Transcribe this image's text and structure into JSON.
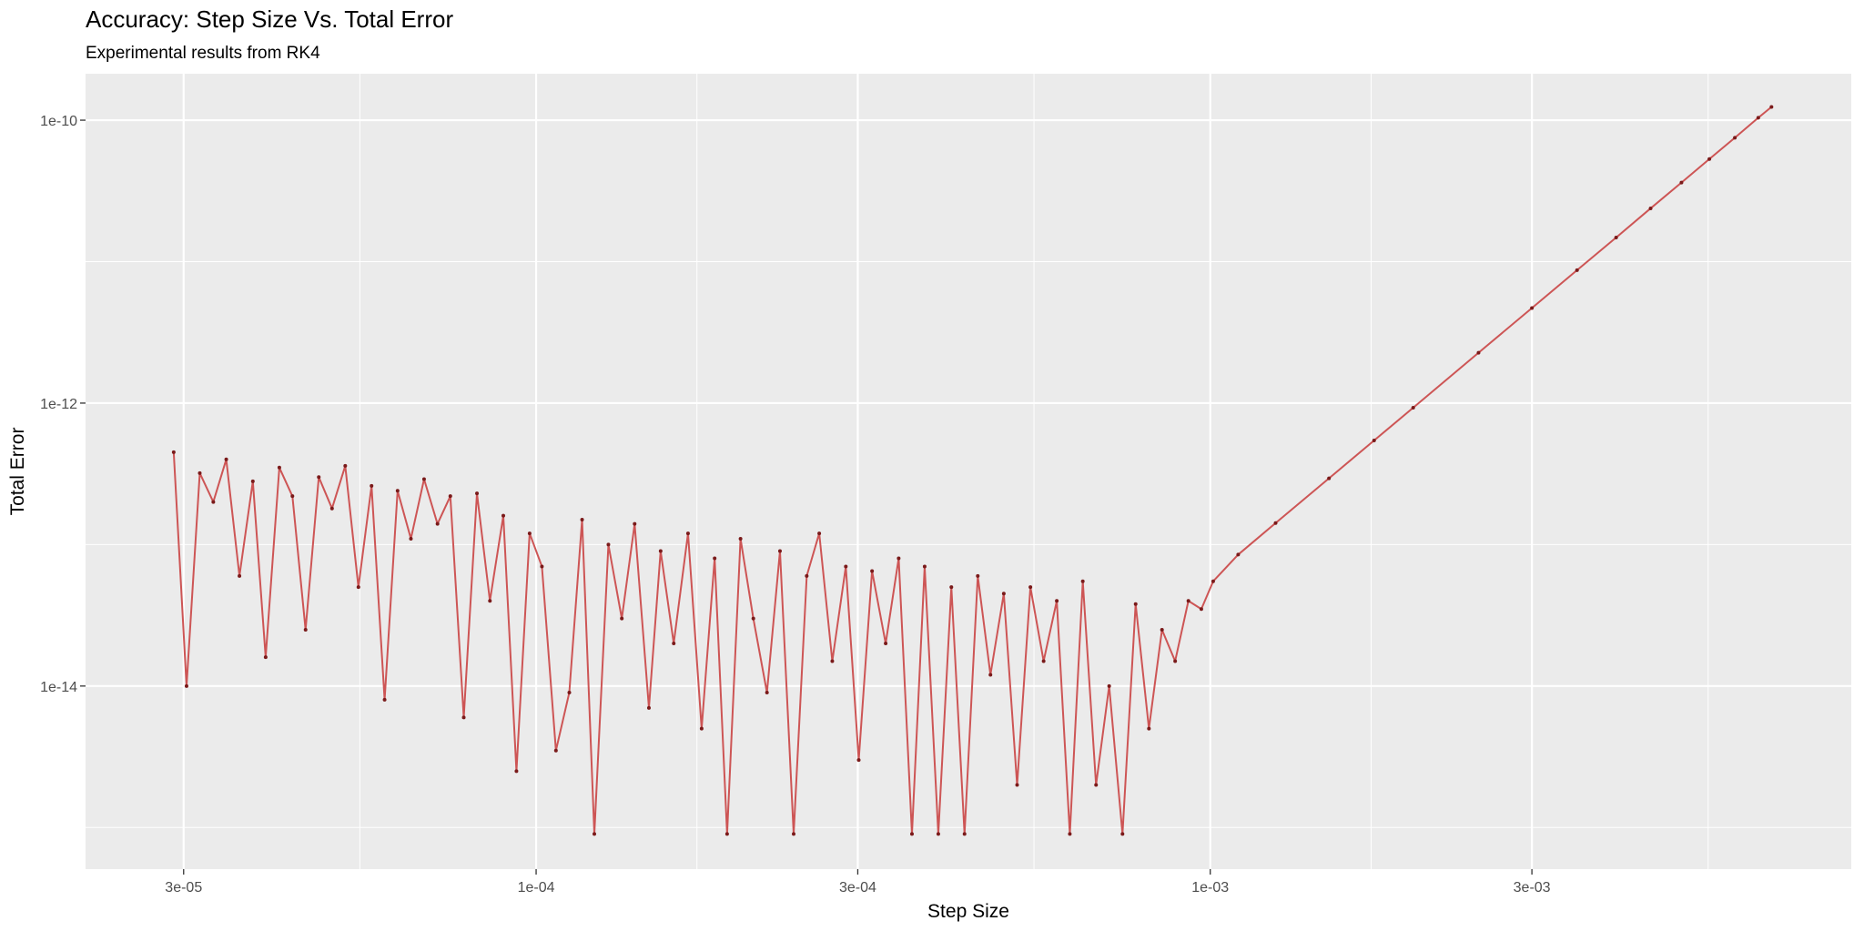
{
  "chart_data": {
    "type": "line",
    "title": "Accuracy: Step Size Vs. Total Error",
    "subtitle": "Experimental results from RK4",
    "x_label": "Step Size",
    "y_label": "Total Error",
    "x_log": true,
    "y_log": true,
    "grid": true,
    "xlim": [
      2.146e-05,
      0.00893
    ],
    "ylim": [
      5.08e-16,
      2.13e-10
    ],
    "xticks": [
      {
        "value": 3e-05,
        "label": "3e-05"
      },
      {
        "value": 0.0001,
        "label": "1e-04"
      },
      {
        "value": 0.0003,
        "label": "3e-04"
      },
      {
        "value": 0.001,
        "label": "1e-03"
      },
      {
        "value": 0.003,
        "label": "3e-03"
      }
    ],
    "x_minor_ticks": [
      5.477e-05,
      0.0001732,
      0.0005477,
      0.001732,
      0.005477
    ],
    "yticks": [
      {
        "value": 1e-14,
        "label": "1e-14"
      },
      {
        "value": 1e-12,
        "label": "1e-12"
      },
      {
        "value": 1e-10,
        "label": "1e-10"
      }
    ],
    "y_minor_ticks": [
      1e-15,
      1e-13,
      1e-11
    ],
    "series": [
      {
        "name": "Total Error",
        "color": "#cd5555",
        "point_color": "#7a1a1a",
        "x": [
          2.9e-05,
          3.03e-05,
          3.17e-05,
          3.32e-05,
          3.47e-05,
          3.63e-05,
          3.8e-05,
          3.97e-05,
          4.16e-05,
          4.35e-05,
          4.55e-05,
          4.76e-05,
          4.98e-05,
          5.21e-05,
          5.45e-05,
          5.7e-05,
          5.96e-05,
          6.23e-05,
          6.52e-05,
          6.82e-05,
          7.14e-05,
          7.46e-05,
          7.81e-05,
          8.17e-05,
          8.54e-05,
          8.94e-05,
          9.35e-05,
          9.78e-05,
          0.000102,
          0.000107,
          0.000112,
          0.000117,
          0.000122,
          0.000128,
          0.000134,
          0.00014,
          0.000147,
          0.000153,
          0.00016,
          0.000168,
          0.000176,
          0.000184,
          0.000192,
          0.000201,
          0.00021,
          0.00022,
          0.00023,
          0.000241,
          0.000252,
          0.000263,
          0.000275,
          0.000288,
          0.000301,
          0.000315,
          0.00033,
          0.000345,
          0.000361,
          0.000377,
          0.000395,
          0.000413,
          0.000432,
          0.000452,
          0.000472,
          0.000494,
          0.000517,
          0.000541,
          0.000566,
          0.000592,
          0.000619,
          0.000647,
          0.000677,
          0.000708,
          0.000741,
          0.000775,
          0.000811,
          0.000848,
          0.000887,
          0.000928,
          0.00097,
          0.00101,
          0.0011,
          0.00125,
          0.0015,
          0.00175,
          0.002,
          0.0025,
          0.003,
          0.0035,
          0.004,
          0.0045,
          0.005,
          0.0055,
          0.006,
          0.0065,
          0.0068
        ],
        "values": [
          4.5e-13,
          1e-14,
          3.2e-13,
          2e-13,
          4e-13,
          6e-14,
          2.8e-13,
          1.6e-14,
          3.5e-13,
          2.2e-13,
          2.5e-14,
          3e-13,
          1.8e-13,
          3.6e-13,
          5e-14,
          2.6e-13,
          8e-15,
          2.4e-13,
          1.1e-13,
          2.9e-13,
          1.4e-13,
          2.2e-13,
          6e-15,
          2.3e-13,
          4e-14,
          1.6e-13,
          2.5e-15,
          1.2e-13,
          7e-14,
          3.5e-15,
          9e-15,
          1.5e-13,
          9e-16,
          1e-13,
          3e-14,
          1.4e-13,
          7e-15,
          9e-14,
          2e-14,
          1.2e-13,
          5e-15,
          8e-14,
          9e-16,
          1.1e-13,
          3e-14,
          9e-15,
          9e-14,
          9e-16,
          6e-14,
          1.2e-13,
          1.5e-14,
          7e-14,
          3e-15,
          6.5e-14,
          2e-14,
          8e-14,
          9e-16,
          7e-14,
          9e-16,
          5e-14,
          9e-16,
          6e-14,
          1.2e-14,
          4.5e-14,
          2e-15,
          5e-14,
          1.5e-14,
          4e-14,
          9e-16,
          5.5e-14,
          2e-15,
          1e-14,
          9e-16,
          3.8e-14,
          5e-15,
          2.5e-14,
          1.5e-14,
          4e-14,
          3.5e-14,
          5.5e-14,
          8.49e-14,
          1.42e-13,
          2.94e-13,
          5.44e-13,
          9.28e-13,
          2.27e-12,
          4.7e-12,
          8.7e-12,
          1.48e-11,
          2.38e-11,
          3.62e-11,
          5.31e-11,
          7.51e-11,
          1.04e-10,
          1.24e-10
        ]
      }
    ]
  }
}
